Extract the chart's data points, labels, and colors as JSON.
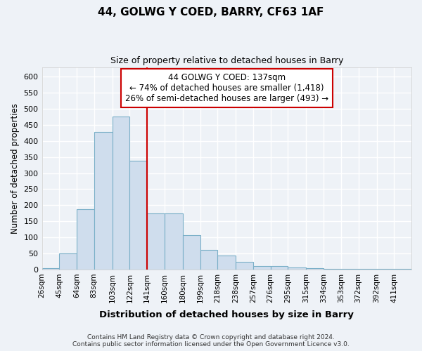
{
  "title1": "44, GOLWG Y COED, BARRY, CF63 1AF",
  "title2": "Size of property relative to detached houses in Barry",
  "xlabel": "Distribution of detached houses by size in Barry",
  "ylabel": "Number of detached properties",
  "bar_color": "#cfdded",
  "bar_edge_color": "#7aafc8",
  "vline_x": 141,
  "vline_color": "#cc0000",
  "categories": [
    "26sqm",
    "45sqm",
    "64sqm",
    "83sqm",
    "103sqm",
    "122sqm",
    "141sqm",
    "160sqm",
    "180sqm",
    "199sqm",
    "218sqm",
    "238sqm",
    "257sqm",
    "276sqm",
    "295sqm",
    "315sqm",
    "334sqm",
    "353sqm",
    "372sqm",
    "392sqm",
    "411sqm"
  ],
  "bin_edges": [
    26,
    45,
    64,
    83,
    103,
    122,
    141,
    160,
    180,
    199,
    218,
    238,
    257,
    276,
    295,
    315,
    334,
    353,
    372,
    392,
    411,
    430
  ],
  "values": [
    5,
    50,
    188,
    428,
    475,
    338,
    175,
    175,
    107,
    60,
    43,
    23,
    10,
    10,
    7,
    4,
    2,
    2,
    2,
    2,
    2
  ],
  "ylim": [
    0,
    630
  ],
  "yticks": [
    0,
    50,
    100,
    150,
    200,
    250,
    300,
    350,
    400,
    450,
    500,
    550,
    600
  ],
  "annotation_box_text": "44 GOLWG Y COED: 137sqm\n← 74% of detached houses are smaller (1,418)\n26% of semi-detached houses are larger (493) →",
  "annotation_box_color": "#ffffff",
  "annotation_box_edge": "#cc0000",
  "footnote1": "Contains HM Land Registry data © Crown copyright and database right 2024.",
  "footnote2": "Contains public sector information licensed under the Open Government Licence v3.0.",
  "background_color": "#eef2f7",
  "grid_color": "#ffffff"
}
